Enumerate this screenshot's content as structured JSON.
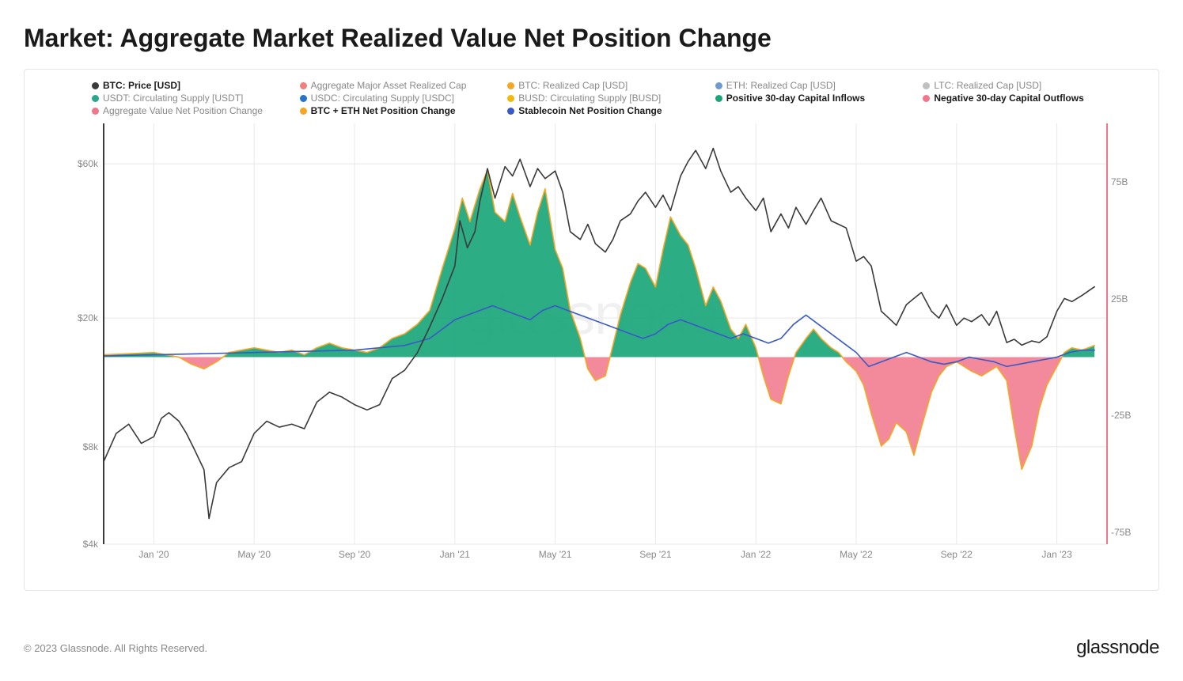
{
  "title": "Market: Aggregate Market Realized Value Net Position Change",
  "watermark": "glassnode",
  "copyright": "© 2023 Glassnode. All Rights Reserved.",
  "brand": "glassnode",
  "colors": {
    "btc_price": "#3a3a3a",
    "agg_realized": "#f08080",
    "btc_realized": "#f5a623",
    "eth_realized": "#6b9bd1",
    "ltc_realized": "#bfbfbf",
    "usdt": "#2ca58d",
    "usdc": "#2775ca",
    "busd": "#f0b90b",
    "positive_inflow": "#1ba67a",
    "negative_outflow": "#f1768a",
    "agg_net": "#f1768a",
    "btc_eth_net": "#f5a623",
    "stablecoin_net": "#3859c7",
    "grid": "#e8e8e8",
    "axis_text": "#888888",
    "left_axis_line": "#3a3a3a",
    "right_axis_line": "#f1768a",
    "background": "#ffffff"
  },
  "legend": [
    {
      "color_key": "btc_price",
      "label": "BTC: Price [USD]",
      "strong": true
    },
    {
      "color_key": "agg_realized",
      "label": "Aggregate Major Asset Realized Cap",
      "strong": false
    },
    {
      "color_key": "btc_realized",
      "label": "BTC: Realized Cap [USD]",
      "strong": false
    },
    {
      "color_key": "eth_realized",
      "label": "ETH: Realized Cap [USD]",
      "strong": false
    },
    {
      "color_key": "ltc_realized",
      "label": "LTC: Realized Cap [USD]",
      "strong": false
    },
    {
      "color_key": "usdt",
      "label": "USDT: Circulating Supply [USDT]",
      "strong": false
    },
    {
      "color_key": "usdc",
      "label": "USDC: Circulating Supply [USDC]",
      "strong": false
    },
    {
      "color_key": "busd",
      "label": "BUSD: Circulating Supply [BUSD]",
      "strong": false
    },
    {
      "color_key": "positive_inflow",
      "label": "Positive 30-day Capital Inflows",
      "strong": true
    },
    {
      "color_key": "negative_outflow",
      "label": "Negative 30-day Capital Outflows",
      "strong": true
    },
    {
      "color_key": "agg_net",
      "label": "Aggregate Value Net Position Change",
      "strong": false
    },
    {
      "color_key": "btc_eth_net",
      "label": "BTC + ETH Net Position Change",
      "strong": true
    },
    {
      "color_key": "stablecoin_net",
      "label": "Stablecoin Net Position Change",
      "strong": true
    }
  ],
  "chart": {
    "type": "combo-line-area",
    "x_domain_months": [
      0,
      40
    ],
    "x_ticks": [
      {
        "m": 2,
        "label": "Jan '20"
      },
      {
        "m": 6,
        "label": "May '20"
      },
      {
        "m": 10,
        "label": "Sep '20"
      },
      {
        "m": 14,
        "label": "Jan '21"
      },
      {
        "m": 18,
        "label": "May '21"
      },
      {
        "m": 22,
        "label": "Sep '21"
      },
      {
        "m": 26,
        "label": "Jan '22"
      },
      {
        "m": 30,
        "label": "May '22"
      },
      {
        "m": 34,
        "label": "Sep '22"
      },
      {
        "m": 38,
        "label": "Jan '23"
      }
    ],
    "y_left": {
      "scale": "log",
      "min": 4000,
      "max": 80000,
      "ticks": [
        {
          "v": 4000,
          "label": "$4k"
        },
        {
          "v": 8000,
          "label": "$8k"
        },
        {
          "v": 20000,
          "label": "$20k"
        },
        {
          "v": 60000,
          "label": "$60k"
        }
      ]
    },
    "y_right": {
      "scale": "linear",
      "min": -80,
      "max": 100,
      "ticks": [
        {
          "v": -75,
          "label": "-75B"
        },
        {
          "v": -25,
          "label": "-25B"
        },
        {
          "v": 25,
          "label": "25B"
        },
        {
          "v": 75,
          "label": "75B"
        }
      ]
    },
    "btc_price": [
      [
        0,
        7200
      ],
      [
        0.5,
        8800
      ],
      [
        1,
        9400
      ],
      [
        1.5,
        8200
      ],
      [
        2,
        8600
      ],
      [
        2.3,
        9800
      ],
      [
        2.6,
        10200
      ],
      [
        3,
        9600
      ],
      [
        3.3,
        8800
      ],
      [
        3.6,
        7900
      ],
      [
        4,
        6800
      ],
      [
        4.2,
        4800
      ],
      [
        4.5,
        6200
      ],
      [
        5,
        6900
      ],
      [
        5.5,
        7200
      ],
      [
        6,
        8800
      ],
      [
        6.5,
        9600
      ],
      [
        7,
        9200
      ],
      [
        7.5,
        9400
      ],
      [
        8,
        9100
      ],
      [
        8.5,
        11000
      ],
      [
        9,
        11800
      ],
      [
        9.5,
        11400
      ],
      [
        10,
        10800
      ],
      [
        10.5,
        10400
      ],
      [
        11,
        10800
      ],
      [
        11.5,
        13000
      ],
      [
        12,
        13800
      ],
      [
        12.5,
        15600
      ],
      [
        13,
        18800
      ],
      [
        13.5,
        23000
      ],
      [
        14,
        29000
      ],
      [
        14.2,
        40000
      ],
      [
        14.5,
        33000
      ],
      [
        14.8,
        37000
      ],
      [
        15,
        46000
      ],
      [
        15.3,
        58000
      ],
      [
        15.6,
        47000
      ],
      [
        16,
        58800
      ],
      [
        16.3,
        55000
      ],
      [
        16.6,
        62000
      ],
      [
        17,
        51000
      ],
      [
        17.3,
        58000
      ],
      [
        17.6,
        54000
      ],
      [
        18,
        57000
      ],
      [
        18.3,
        49000
      ],
      [
        18.6,
        37000
      ],
      [
        19,
        35000
      ],
      [
        19.3,
        39000
      ],
      [
        19.6,
        34000
      ],
      [
        20,
        32000
      ],
      [
        20.3,
        35000
      ],
      [
        20.6,
        40000
      ],
      [
        21,
        42000
      ],
      [
        21.3,
        46000
      ],
      [
        21.6,
        49000
      ],
      [
        22,
        44000
      ],
      [
        22.3,
        48000
      ],
      [
        22.6,
        43000
      ],
      [
        23,
        55000
      ],
      [
        23.3,
        61000
      ],
      [
        23.6,
        66000
      ],
      [
        24,
        58000
      ],
      [
        24.3,
        67000
      ],
      [
        24.6,
        57000
      ],
      [
        25,
        49000
      ],
      [
        25.3,
        51000
      ],
      [
        25.6,
        47000
      ],
      [
        26,
        43000
      ],
      [
        26.3,
        47000
      ],
      [
        26.6,
        37000
      ],
      [
        27,
        42000
      ],
      [
        27.3,
        38000
      ],
      [
        27.6,
        44000
      ],
      [
        28,
        39000
      ],
      [
        28.3,
        43000
      ],
      [
        28.6,
        47000
      ],
      [
        29,
        40000
      ],
      [
        29.3,
        39000
      ],
      [
        29.6,
        38000
      ],
      [
        30,
        30000
      ],
      [
        30.3,
        31000
      ],
      [
        30.6,
        29000
      ],
      [
        31,
        21000
      ],
      [
        31.3,
        20000
      ],
      [
        31.6,
        19000
      ],
      [
        32,
        22000
      ],
      [
        32.3,
        23000
      ],
      [
        32.6,
        24000
      ],
      [
        33,
        21000
      ],
      [
        33.3,
        20000
      ],
      [
        33.6,
        22000
      ],
      [
        34,
        19000
      ],
      [
        34.3,
        20000
      ],
      [
        34.6,
        19500
      ],
      [
        35,
        20500
      ],
      [
        35.3,
        19000
      ],
      [
        35.6,
        21000
      ],
      [
        36,
        16800
      ],
      [
        36.3,
        17200
      ],
      [
        36.6,
        16500
      ],
      [
        37,
        17000
      ],
      [
        37.3,
        16800
      ],
      [
        37.6,
        17500
      ],
      [
        38,
        21000
      ],
      [
        38.3,
        23000
      ],
      [
        38.6,
        22500
      ],
      [
        39,
        23500
      ],
      [
        39.5,
        25000
      ]
    ],
    "btc_eth_net": [
      [
        0,
        1
      ],
      [
        1,
        1.5
      ],
      [
        2,
        2
      ],
      [
        3,
        0
      ],
      [
        3.5,
        -3
      ],
      [
        4,
        -5
      ],
      [
        4.5,
        -2
      ],
      [
        5,
        2
      ],
      [
        5.5,
        3
      ],
      [
        6,
        4
      ],
      [
        6.5,
        3
      ],
      [
        7,
        2
      ],
      [
        7.5,
        3
      ],
      [
        8,
        1
      ],
      [
        8.5,
        4
      ],
      [
        9,
        6
      ],
      [
        9.5,
        4
      ],
      [
        10,
        3
      ],
      [
        10.5,
        2
      ],
      [
        11,
        4
      ],
      [
        11.5,
        8
      ],
      [
        12,
        10
      ],
      [
        12.5,
        14
      ],
      [
        13,
        20
      ],
      [
        13.5,
        38
      ],
      [
        14,
        55
      ],
      [
        14.3,
        68
      ],
      [
        14.6,
        58
      ],
      [
        15,
        72
      ],
      [
        15.3,
        80
      ],
      [
        15.6,
        62
      ],
      [
        16,
        58
      ],
      [
        16.3,
        70
      ],
      [
        16.6,
        60
      ],
      [
        17,
        48
      ],
      [
        17.3,
        62
      ],
      [
        17.6,
        72
      ],
      [
        18,
        46
      ],
      [
        18.3,
        38
      ],
      [
        18.6,
        20
      ],
      [
        19,
        8
      ],
      [
        19.3,
        -5
      ],
      [
        19.6,
        -10
      ],
      [
        20,
        -8
      ],
      [
        20.3,
        5
      ],
      [
        20.6,
        18
      ],
      [
        21,
        32
      ],
      [
        21.3,
        40
      ],
      [
        21.6,
        38
      ],
      [
        22,
        30
      ],
      [
        22.3,
        46
      ],
      [
        22.6,
        60
      ],
      [
        23,
        52
      ],
      [
        23.3,
        48
      ],
      [
        23.6,
        38
      ],
      [
        24,
        22
      ],
      [
        24.3,
        30
      ],
      [
        24.6,
        24
      ],
      [
        25,
        12
      ],
      [
        25.3,
        8
      ],
      [
        25.6,
        14
      ],
      [
        26,
        4
      ],
      [
        26.3,
        -8
      ],
      [
        26.6,
        -18
      ],
      [
        27,
        -20
      ],
      [
        27.3,
        -8
      ],
      [
        27.6,
        2
      ],
      [
        28,
        8
      ],
      [
        28.3,
        12
      ],
      [
        28.6,
        8
      ],
      [
        29,
        4
      ],
      [
        29.3,
        2
      ],
      [
        29.6,
        -2
      ],
      [
        30,
        -6
      ],
      [
        30.3,
        -12
      ],
      [
        30.6,
        -24
      ],
      [
        31,
        -38
      ],
      [
        31.3,
        -35
      ],
      [
        31.6,
        -28
      ],
      [
        32,
        -32
      ],
      [
        32.3,
        -42
      ],
      [
        32.6,
        -30
      ],
      [
        33,
        -15
      ],
      [
        33.3,
        -8
      ],
      [
        33.6,
        -4
      ],
      [
        34,
        -2
      ],
      [
        34.3,
        -4
      ],
      [
        34.6,
        -6
      ],
      [
        35,
        -8
      ],
      [
        35.3,
        -6
      ],
      [
        35.6,
        -4
      ],
      [
        36,
        -10
      ],
      [
        36.3,
        -30
      ],
      [
        36.6,
        -48
      ],
      [
        37,
        -38
      ],
      [
        37.3,
        -22
      ],
      [
        37.6,
        -12
      ],
      [
        38,
        -4
      ],
      [
        38.3,
        2
      ],
      [
        38.6,
        4
      ],
      [
        39,
        3
      ],
      [
        39.5,
        5
      ]
    ],
    "stablecoin_net": [
      [
        0,
        0.5
      ],
      [
        2,
        1
      ],
      [
        4,
        1.5
      ],
      [
        6,
        2
      ],
      [
        8,
        2.5
      ],
      [
        10,
        3
      ],
      [
        11,
        4
      ],
      [
        12,
        5
      ],
      [
        13,
        8
      ],
      [
        13.5,
        12
      ],
      [
        14,
        16
      ],
      [
        14.5,
        18
      ],
      [
        15,
        20
      ],
      [
        15.5,
        22
      ],
      [
        16,
        20
      ],
      [
        16.5,
        18
      ],
      [
        17,
        16
      ],
      [
        17.5,
        20
      ],
      [
        18,
        22
      ],
      [
        18.5,
        20
      ],
      [
        19,
        18
      ],
      [
        19.5,
        16
      ],
      [
        20,
        14
      ],
      [
        20.5,
        12
      ],
      [
        21,
        10
      ],
      [
        21.5,
        8
      ],
      [
        22,
        10
      ],
      [
        22.5,
        14
      ],
      [
        23,
        16
      ],
      [
        23.5,
        14
      ],
      [
        24,
        12
      ],
      [
        24.5,
        10
      ],
      [
        25,
        8
      ],
      [
        25.5,
        10
      ],
      [
        26,
        8
      ],
      [
        26.5,
        6
      ],
      [
        27,
        8
      ],
      [
        27.5,
        14
      ],
      [
        28,
        18
      ],
      [
        28.5,
        14
      ],
      [
        29,
        10
      ],
      [
        29.5,
        6
      ],
      [
        30,
        2
      ],
      [
        30.5,
        -4
      ],
      [
        31,
        -2
      ],
      [
        31.5,
        0
      ],
      [
        32,
        2
      ],
      [
        32.5,
        0
      ],
      [
        33,
        -2
      ],
      [
        33.5,
        -3
      ],
      [
        34,
        -2
      ],
      [
        34.5,
        0
      ],
      [
        35,
        -1
      ],
      [
        35.5,
        -2
      ],
      [
        36,
        -4
      ],
      [
        36.5,
        -3
      ],
      [
        37,
        -2
      ],
      [
        37.5,
        -1
      ],
      [
        38,
        0
      ],
      [
        38.5,
        2
      ],
      [
        39,
        3
      ],
      [
        39.5,
        3
      ]
    ],
    "line_width": 1.6,
    "area_opacity_pos": 0.92,
    "area_opacity_neg": 0.85
  }
}
